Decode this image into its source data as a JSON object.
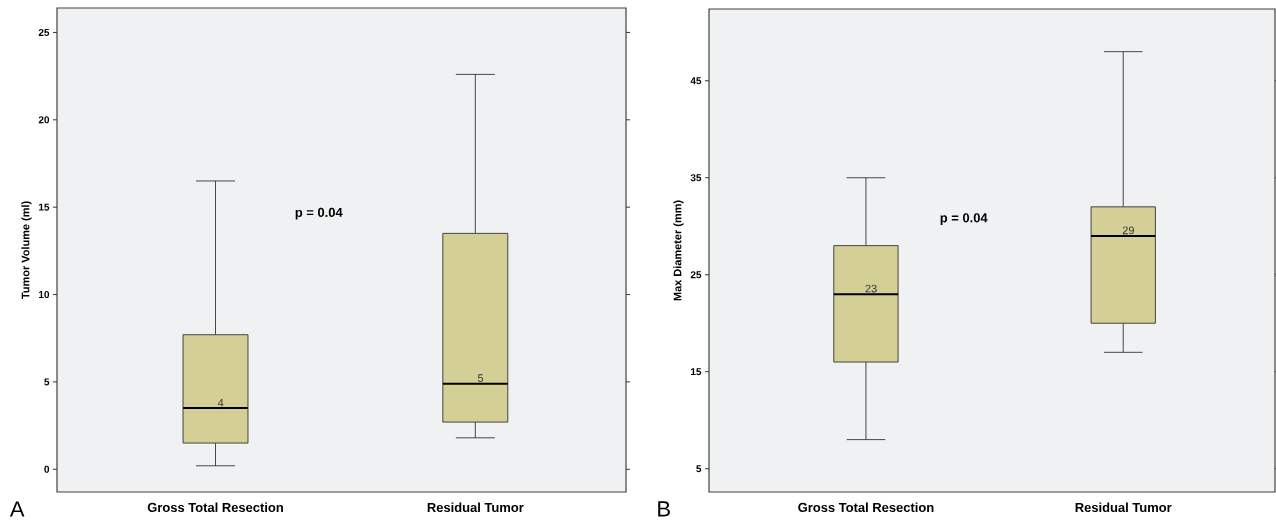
{
  "chart_data": [
    {
      "type": "box",
      "ylabel": "Tumor Volume (ml)",
      "categories": [
        "Gross Total Resection",
        "Residual Tumor"
      ],
      "boxes": [
        {
          "low": 0.2,
          "q1": 1.5,
          "median": 3.5,
          "q3": 7.7,
          "high": 16.5
        },
        {
          "low": 1.8,
          "q1": 2.7,
          "median": 4.9,
          "q3": 13.5,
          "high": 22.6
        }
      ],
      "color": "#d3cf95",
      "ylim": [
        -1.3,
        26.4
      ],
      "yticks": [
        0,
        5,
        10,
        15,
        20,
        25
      ],
      "annotations": [
        "A",
        "p = 0.04",
        "4",
        "5"
      ]
    },
    {
      "type": "box",
      "ylabel": "Max Diameter (mm)",
      "categories": [
        "Gross Total Resection",
        "Residual Tumor"
      ],
      "boxes": [
        {
          "low": 8,
          "q1": 16,
          "median": 23,
          "q3": 28,
          "high": 35
        },
        {
          "low": 17,
          "q1": 20,
          "median": 29,
          "q3": 32,
          "high": 48
        }
      ],
      "color": "#d3cf95",
      "ylim": [
        2.6,
        52.4
      ],
      "yticks": [
        5,
        15,
        25,
        35,
        45
      ],
      "annotations": [
        "B",
        "p = 0.04",
        "23",
        "29"
      ]
    }
  ]
}
